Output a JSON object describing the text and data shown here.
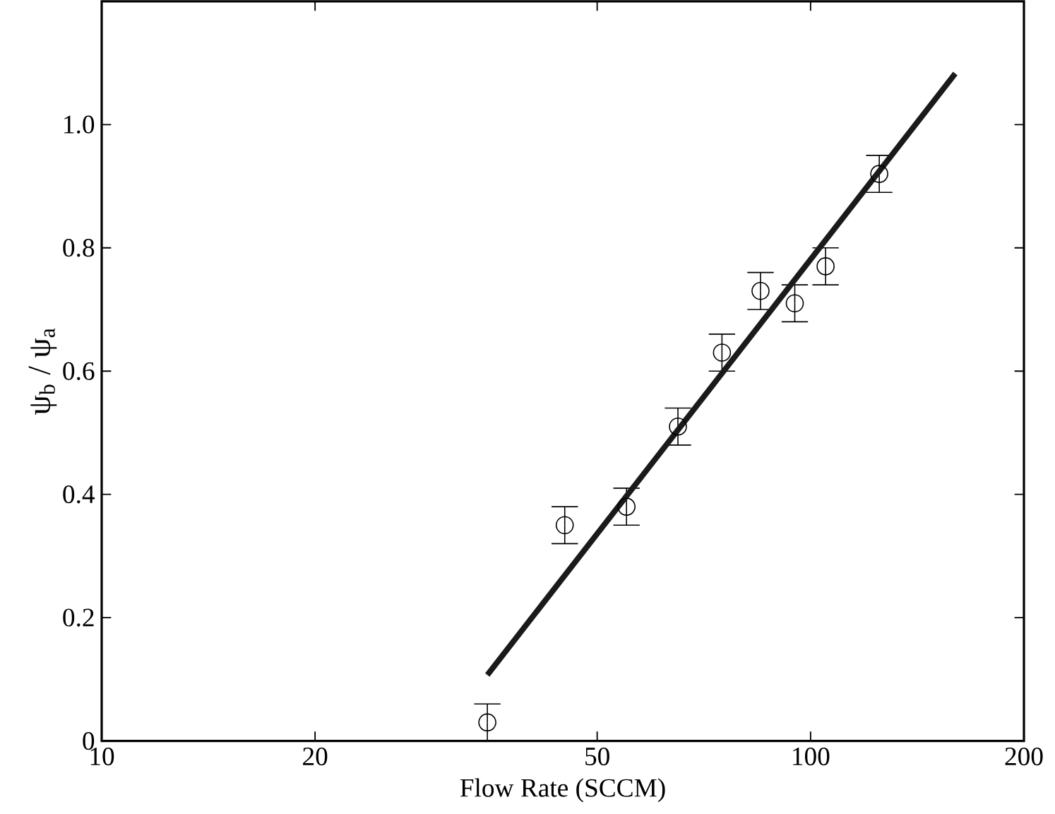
{
  "chart_data": {
    "type": "scatter",
    "xlabel": "Flow Rate (SCCM)",
    "ylabel": "ψ$_{b}$ / ψ$_{a}$",
    "log": "x",
    "xlim": [
      10,
      200
    ],
    "xticks": [
      10,
      20,
      50,
      100,
      200
    ],
    "ylim": [
      0,
      1.2
    ],
    "yticks": [
      0,
      0.2,
      0.4,
      0.6,
      {
        "value": 0.8,
        "label": "0.8"
      },
      {
        "value": 1,
        "label": "1.0"
      }
    ],
    "grid": false,
    "marker": "circle",
    "series": [
      {
        "color": "#000000",
        "x": [
          35,
          45,
          55,
          65,
          75,
          85,
          95,
          105,
          125
        ],
        "values": [
          0.03,
          0.35,
          0.38,
          0.51,
          0.63,
          0.73,
          0.71,
          0.77,
          0.92
        ],
        "errors": [
          0.03,
          0.03,
          0.03,
          0.03,
          0.03,
          0.03,
          0.03,
          0.03,
          0.03
        ]
      },
      {
        "type": "line",
        "color": "#1a1a1a",
        "x": [
          35,
          160
        ],
        "values": [
          0.107,
          1.083
        ],
        "marker": "none"
      }
    ]
  }
}
